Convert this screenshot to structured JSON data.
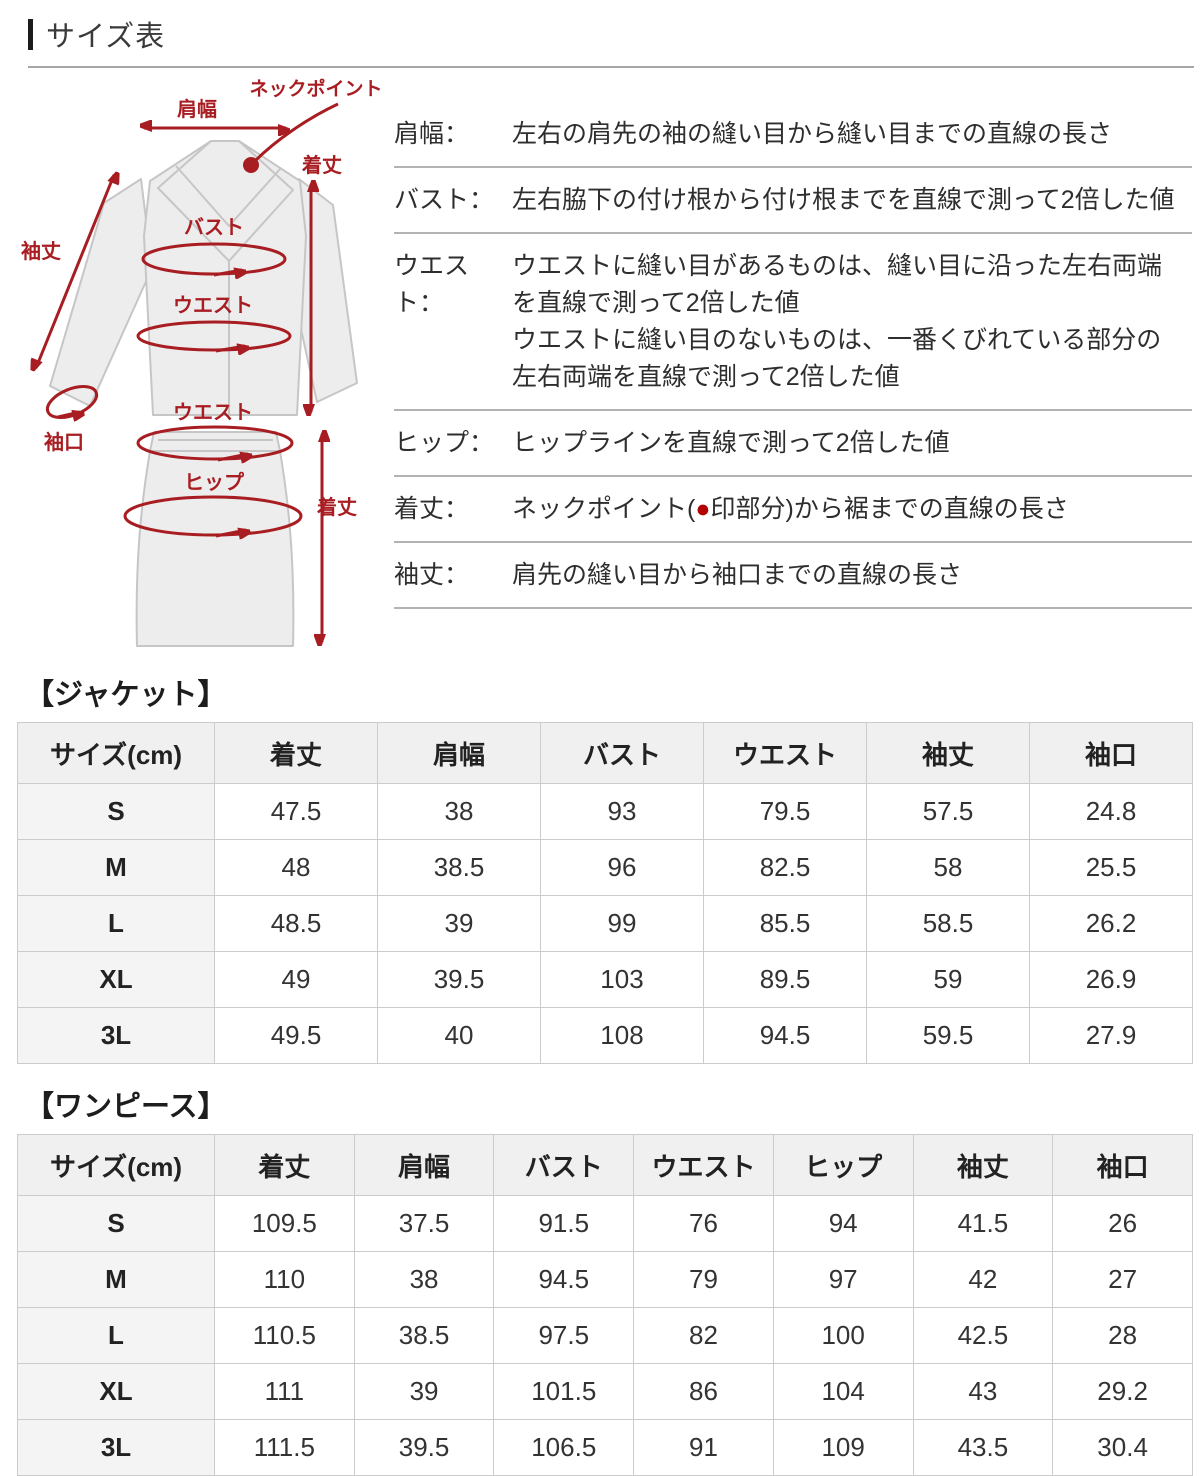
{
  "page_title": "サイズ表",
  "colors": {
    "accent_red": "#a81d22",
    "dot_red": "#b20000",
    "table_header_bg": "#f0f0f0",
    "table_border": "#cccccc",
    "separator": "#b3b3b3"
  },
  "diagram": {
    "shoulder_width": "肩幅",
    "neck_point": "ネックポイント",
    "jacket_length": "着丈",
    "sleeve_length": "袖丈",
    "bust": "バスト",
    "waist_upper": "ウエスト",
    "cuff": "袖口",
    "waist_lower": "ウエスト",
    "hip": "ヒップ",
    "skirt_length": "着丈"
  },
  "definitions": [
    {
      "term": "肩幅：",
      "lines": [
        "左右の肩先の袖の縫い目から縫い目までの直線の長さ"
      ]
    },
    {
      "term": "バスト：",
      "lines": [
        "左右脇下の付け根から付け根までを直線で測って2倍した値"
      ]
    },
    {
      "term": "ウエスト：",
      "lines": [
        "ウエストに縫い目があるものは、縫い目に沿った左右両端",
        "を直線で測って2倍した値",
        "ウエストに縫い目のないものは、一番くびれている部分の",
        "左右両端を直線で測って2倍した値"
      ]
    },
    {
      "term": "ヒップ：",
      "lines": [
        "ヒップラインを直線で測って2倍した値"
      ]
    },
    {
      "term": "着丈：",
      "line_parts": [
        "ネックポイント(",
        "●",
        "印部分)から裾までの直線の長さ"
      ]
    },
    {
      "term": "袖丈：",
      "lines": [
        "肩先の縫い目から袖口までの直線の長さ"
      ]
    }
  ],
  "jacket": {
    "heading": "【ジャケット】",
    "headers": [
      "サイズ(cm)",
      "着丈",
      "肩幅",
      "バスト",
      "ウエスト",
      "袖丈",
      "袖口"
    ],
    "rows": [
      {
        "size": "S",
        "values": [
          "47.5",
          "38",
          "93",
          "79.5",
          "57.5",
          "24.8"
        ]
      },
      {
        "size": "M",
        "values": [
          "48",
          "38.5",
          "96",
          "82.5",
          "58",
          "25.5"
        ]
      },
      {
        "size": "L",
        "values": [
          "48.5",
          "39",
          "99",
          "85.5",
          "58.5",
          "26.2"
        ]
      },
      {
        "size": "XL",
        "values": [
          "49",
          "39.5",
          "103",
          "89.5",
          "59",
          "26.9"
        ]
      },
      {
        "size": "3L",
        "values": [
          "49.5",
          "40",
          "108",
          "94.5",
          "59.5",
          "27.9"
        ]
      }
    ]
  },
  "onepiece": {
    "heading": "【ワンピース】",
    "headers": [
      "サイズ(cm)",
      "着丈",
      "肩幅",
      "バスト",
      "ウエスト",
      "ヒップ",
      "袖丈",
      "袖口"
    ],
    "rows": [
      {
        "size": "S",
        "values": [
          "109.5",
          "37.5",
          "91.5",
          "76",
          "94",
          "41.5",
          "26"
        ]
      },
      {
        "size": "M",
        "values": [
          "110",
          "38",
          "94.5",
          "79",
          "97",
          "42",
          "27"
        ]
      },
      {
        "size": "L",
        "values": [
          "110.5",
          "38.5",
          "97.5",
          "82",
          "100",
          "42.5",
          "28"
        ]
      },
      {
        "size": "XL",
        "values": [
          "111",
          "39",
          "101.5",
          "86",
          "104",
          "43",
          "29.2"
        ]
      },
      {
        "size": "3L",
        "values": [
          "111.5",
          "39.5",
          "106.5",
          "91",
          "109",
          "43.5",
          "30.4"
        ]
      }
    ]
  }
}
